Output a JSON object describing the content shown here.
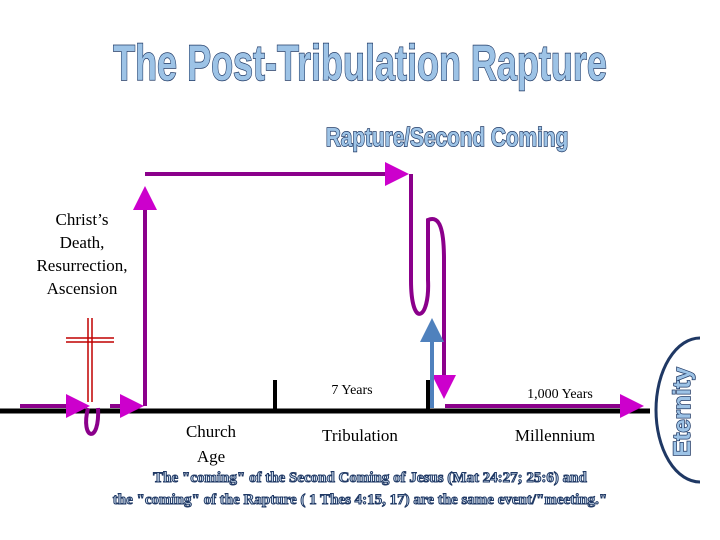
{
  "header": {
    "title": "The Post-Tribulation Rapture",
    "subtitle": "Rapture/Second Coming"
  },
  "labels": {
    "ascension": [
      "Christ’s",
      "Death,",
      "Resurrection,",
      "Ascension"
    ],
    "seven_years": "7 Years",
    "thousand_years": "1,000 Years",
    "church_age": [
      "Church",
      "Age"
    ],
    "tribulation": "Tribulation",
    "millennium": "Millennium",
    "eternity": "Eternity"
  },
  "caption": [
    "The \"coming\" of the Second Coming of Jesus (Mat 24:27; 25:6) and",
    "the \"coming\" of the Rapture ( 1 Thes 4:15, 17) are the same event/\"meeting.\""
  ]
}
